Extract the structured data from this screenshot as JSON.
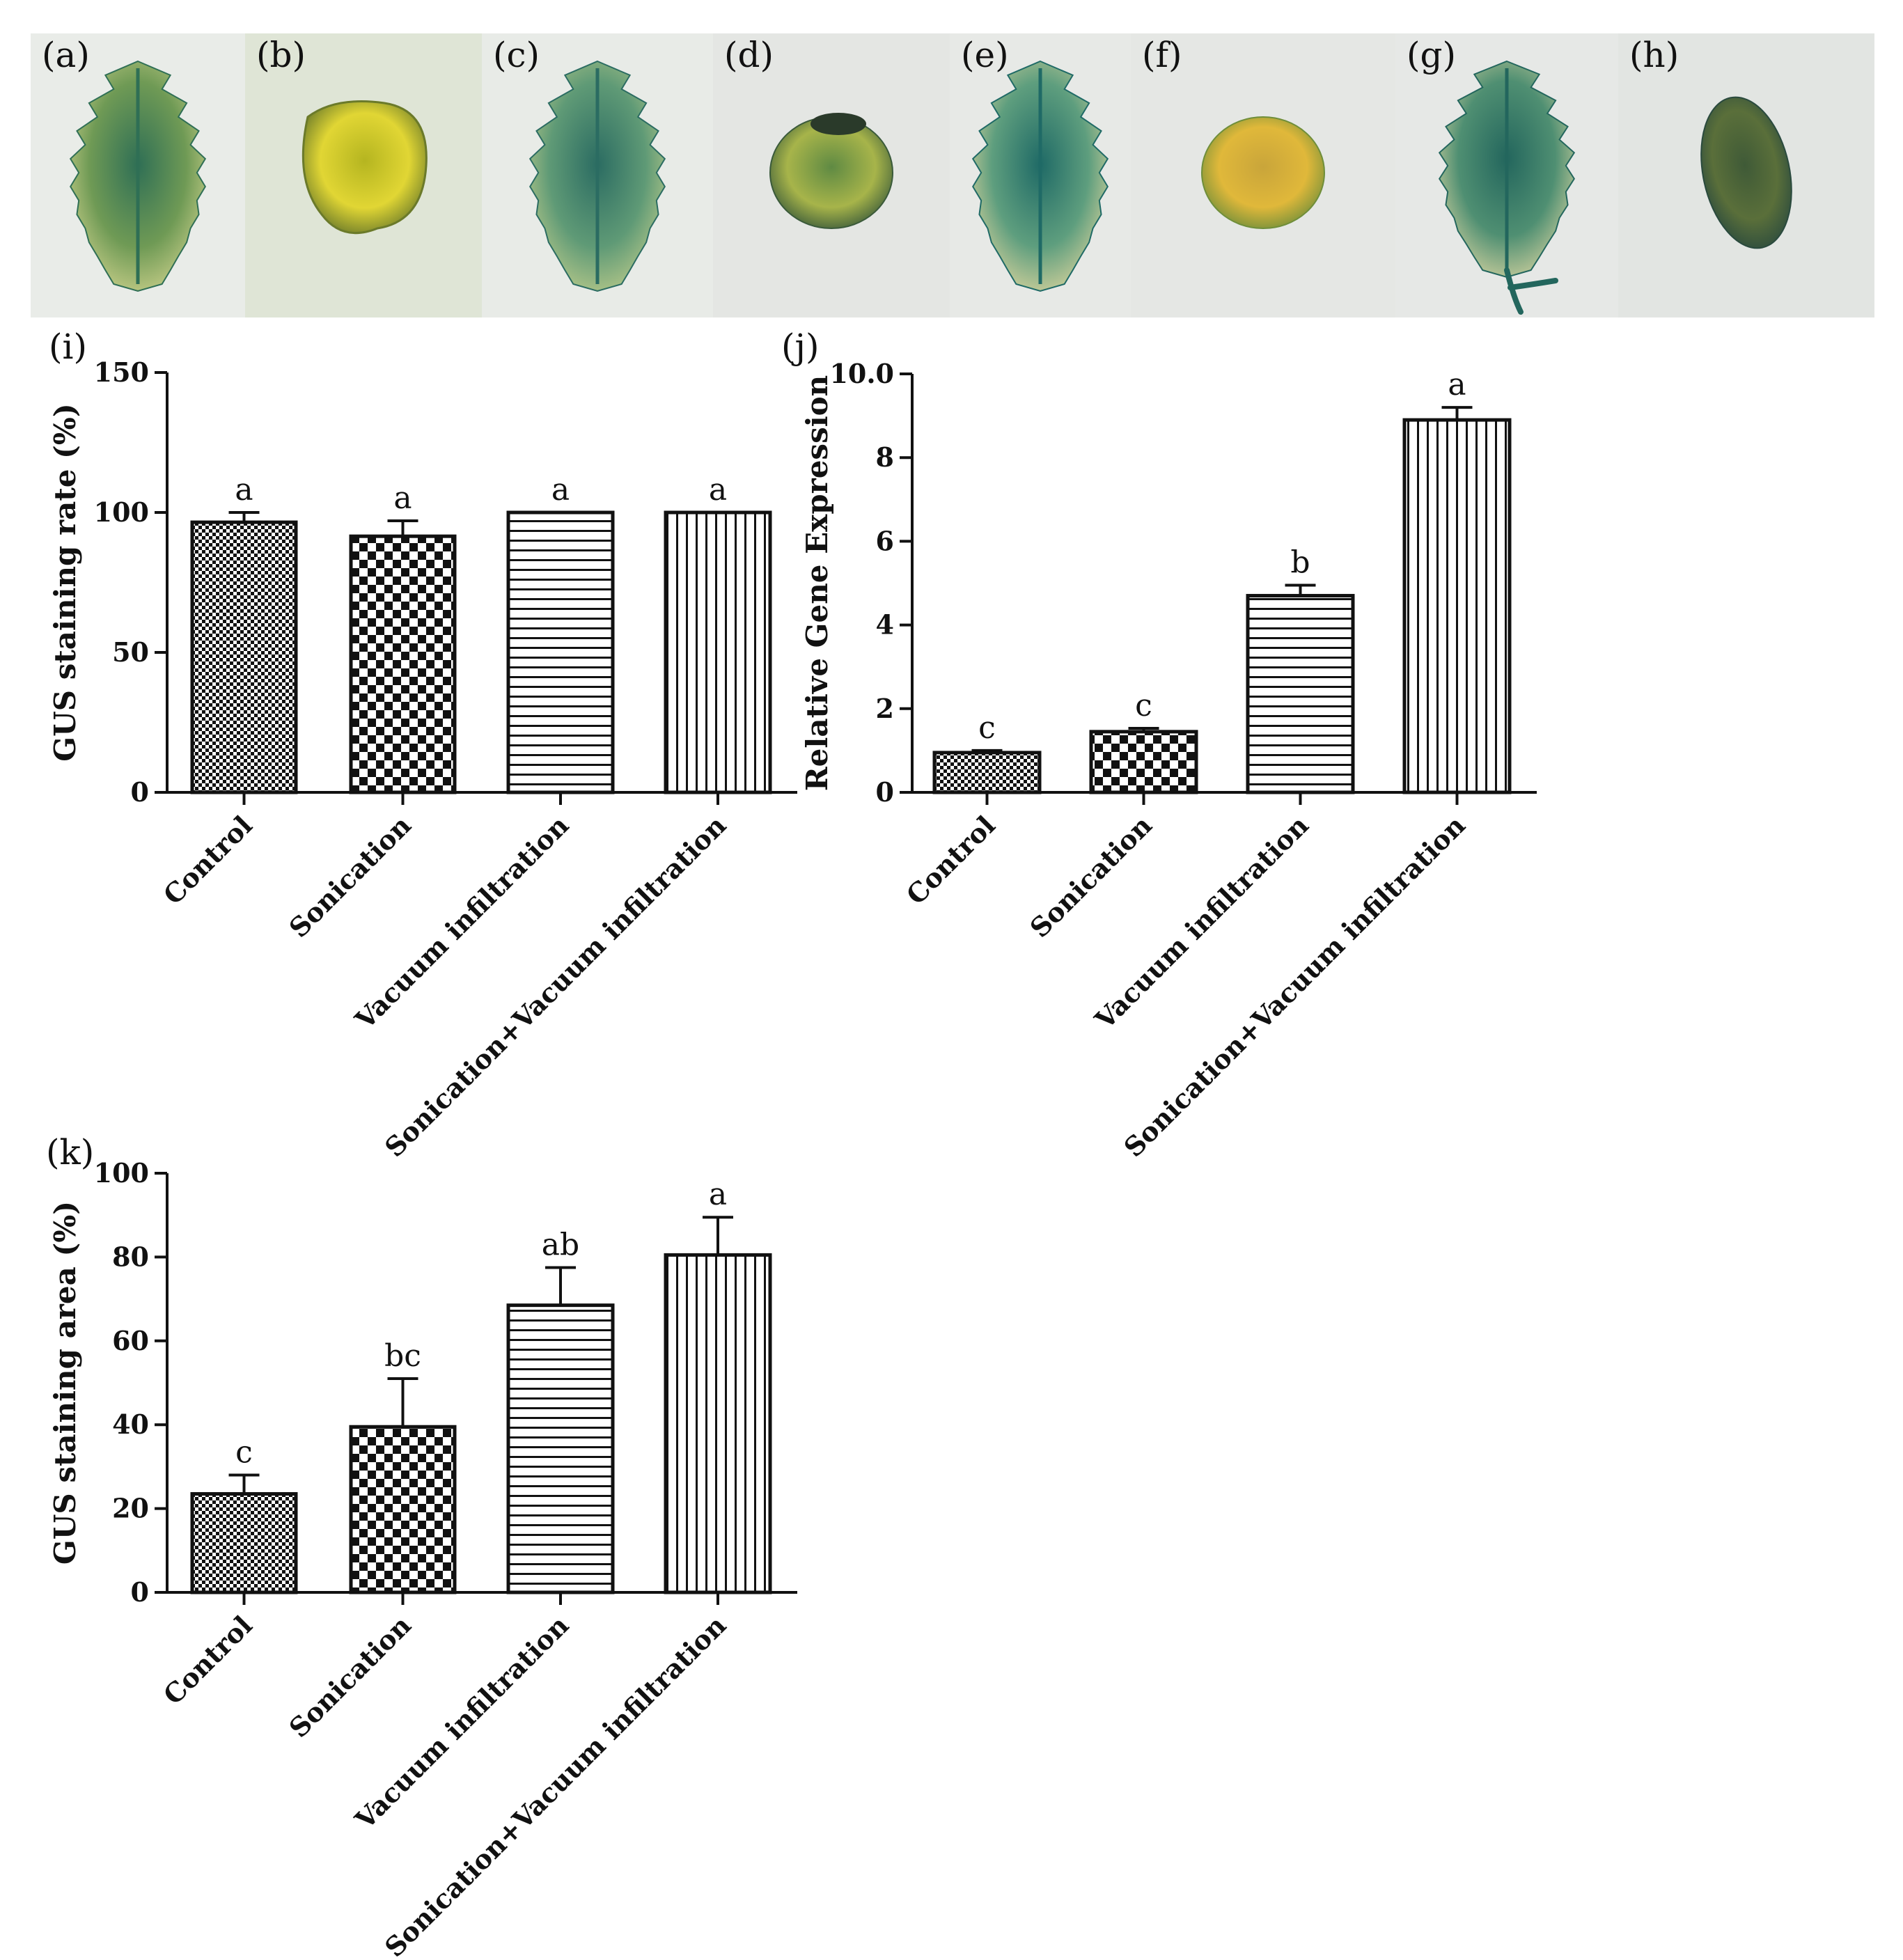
{
  "photos": [
    {
      "label": "(a)",
      "bg": "#e9ece8",
      "subject": "leaf",
      "colors": [
        "#2f6f55",
        "#6f9a55",
        "#c9cf8a"
      ]
    },
    {
      "label": "(b)",
      "bg": "#dfe5d6",
      "subject": "cotyledon",
      "colors": [
        "#b5b520",
        "#e1d634",
        "#6b7a2a"
      ]
    },
    {
      "label": "(c)",
      "bg": "#e8ebe7",
      "subject": "leaf",
      "colors": [
        "#2b6c62",
        "#5f9a76",
        "#b8c98a"
      ]
    },
    {
      "label": "(d)",
      "bg": "#e4e6e3",
      "subject": "seed",
      "colors": [
        "#5f8a43",
        "#a7b44a",
        "#3a5a3a"
      ]
    },
    {
      "label": "(e)",
      "bg": "#e7e9e6",
      "subject": "leaf",
      "colors": [
        "#1f6a66",
        "#5e9e7e",
        "#d6d29c"
      ]
    },
    {
      "label": "(f)",
      "bg": "#e5e7e4",
      "subject": "seed",
      "colors": [
        "#c9a53a",
        "#e0b83a",
        "#6f8e3a"
      ]
    },
    {
      "label": "(g)",
      "bg": "#e6e8e6",
      "subject": "leaf-stem",
      "colors": [
        "#23665d",
        "#4f8f72",
        "#cfd09e"
      ]
    },
    {
      "label": "(h)",
      "bg": "#e2e5e2",
      "subject": "seed",
      "colors": [
        "#3f5a37",
        "#5a6f3a",
        "#2a4a3e"
      ]
    }
  ],
  "chart_data": [
    {
      "panel_label": "(i)",
      "type": "bar",
      "categories": [
        "Control",
        "Sonication",
        "Vacuum infiltration",
        "Sonication+Vacuum infiltration"
      ],
      "values": [
        96.5,
        91.5,
        100,
        100
      ],
      "errors": [
        3.5,
        5.5,
        0,
        0
      ],
      "significance": [
        "a",
        "a",
        "a",
        "a"
      ],
      "patterns": [
        "fine-check",
        "coarse-check",
        "horizontal-lines",
        "vertical-lines"
      ],
      "ylabel": "GUS staining rate (%)",
      "ylim": [
        0,
        150
      ],
      "yticks": [
        0,
        50,
        100,
        150
      ],
      "grid": false,
      "legend": "none"
    },
    {
      "panel_label": "(j)",
      "type": "bar",
      "categories": [
        "Control",
        "Sonication",
        "Vacuum infiltration",
        "Sonication+Vacuum infiltration"
      ],
      "values": [
        0.95,
        1.45,
        4.7,
        8.9
      ],
      "errors": [
        0.05,
        0.08,
        0.25,
        0.3
      ],
      "significance": [
        "c",
        "c",
        "b",
        "a"
      ],
      "patterns": [
        "fine-check",
        "coarse-check",
        "horizontal-lines",
        "vertical-lines"
      ],
      "ylabel": "Relative Gene Expression",
      "ylim": [
        0,
        10
      ],
      "yticks": [
        "0",
        "2",
        "4",
        "6",
        "8",
        "10.0"
      ],
      "grid": false,
      "legend": "none"
    },
    {
      "panel_label": "(k)",
      "type": "bar",
      "categories": [
        "Control",
        "Sonication",
        "Vacuum infiltration",
        "Sonication+Vacuum infiltration"
      ],
      "values": [
        23.5,
        39.5,
        68.5,
        80.5
      ],
      "errors": [
        4.5,
        11.5,
        9,
        9
      ],
      "significance": [
        "c",
        "bc",
        "ab",
        "a"
      ],
      "patterns": [
        "fine-check",
        "coarse-check",
        "horizontal-lines",
        "vertical-lines"
      ],
      "ylabel": "GUS staining area  (%)",
      "ylim": [
        0,
        100
      ],
      "yticks": [
        0,
        20,
        40,
        60,
        80,
        100
      ],
      "grid": false,
      "legend": "none"
    }
  ]
}
